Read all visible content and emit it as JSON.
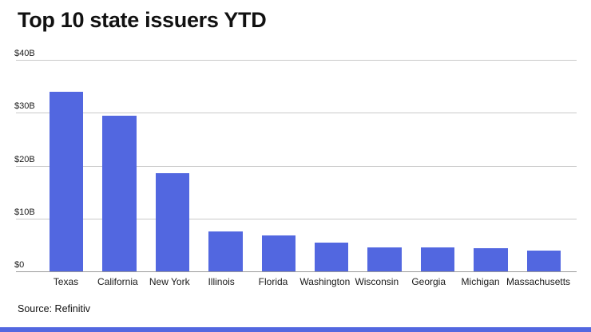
{
  "title": "Top 10 state issuers YTD",
  "source": "Source: Refinitiv",
  "colors": {
    "bar": "#5267e0",
    "grid": "#c9c9c9",
    "axis": "#9a9a9a",
    "text": "#1a1a1a"
  },
  "chart_data": {
    "type": "bar",
    "title": "Top 10 state issuers YTD",
    "categories": [
      "Texas",
      "California",
      "New York",
      "Illinois",
      "Florida",
      "Washington",
      "Wisconsin",
      "Georgia",
      "Michigan",
      "Massachusetts"
    ],
    "values": [
      34,
      29.5,
      18.5,
      7.6,
      6.8,
      5.4,
      4.6,
      4.6,
      4.4,
      4.0
    ],
    "unit": "billions USD",
    "xlabel": "",
    "ylabel": "",
    "ylim": [
      0,
      40
    ],
    "yticks": [
      {
        "value": 0,
        "label": "$0"
      },
      {
        "value": 10,
        "label": "$10B"
      },
      {
        "value": 20,
        "label": "$20B"
      },
      {
        "value": 30,
        "label": "$30B"
      },
      {
        "value": 40,
        "label": "$40B"
      }
    ],
    "grid": true,
    "legend": false,
    "source": "Source: Refinitiv"
  }
}
